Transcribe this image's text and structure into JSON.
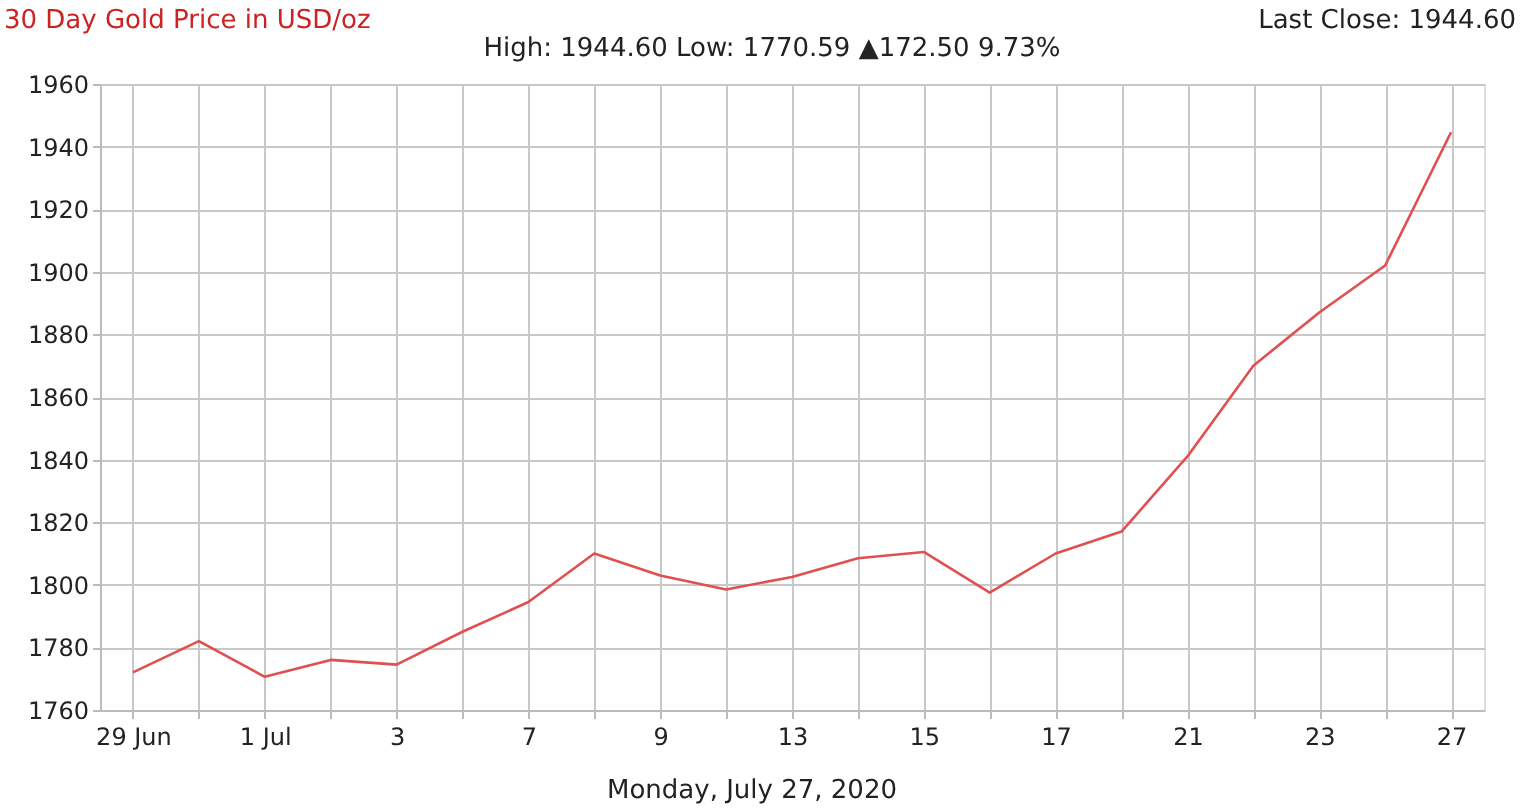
{
  "chart_data": {
    "type": "line",
    "title": "30 Day Gold Price in USD/oz",
    "subtitle": "High: 1944.60 Low: 1770.59 ▲172.50 9.73%",
    "annotations": [
      "Last Close: 1944.60",
      "Monday, July 27, 2020"
    ],
    "categories": [
      "29 Jun",
      null,
      "1 Jul",
      null,
      "3",
      null,
      "7",
      null,
      "9",
      null,
      "13",
      null,
      "15",
      null,
      "17",
      null,
      "21",
      null,
      "23",
      null,
      "27"
    ],
    "series": [
      {
        "color": "#e05050",
        "values": [
          1772,
          1782,
          1770.6,
          1776,
          1774.5,
          1785,
          1794.5,
          1810,
          1803,
          1798.5,
          1802.5,
          1808.5,
          1810.5,
          1797.5,
          1810,
          1817,
          1841,
          1870,
          1887,
          1902,
          1944.6
        ]
      }
    ],
    "ylim": [
      1760,
      1960
    ],
    "yticks": [
      1760,
      1780,
      1800,
      1820,
      1840,
      1860,
      1880,
      1900,
      1920,
      1940,
      1960
    ],
    "grid": true,
    "marker": "none",
    "line_style": "solid"
  }
}
